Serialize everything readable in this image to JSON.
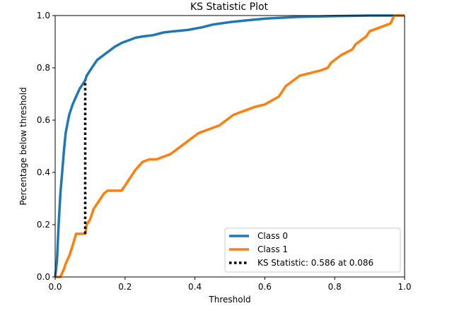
{
  "chart_data": {
    "type": "line",
    "title": "KS Statistic Plot",
    "xlabel": "Threshold",
    "ylabel": "Percentage below threshold",
    "xlim": [
      0.0,
      1.0
    ],
    "ylim": [
      0.0,
      1.0
    ],
    "xticks": [
      "0.0",
      "0.2",
      "0.4",
      "0.6",
      "0.8",
      "1.0"
    ],
    "yticks": [
      "0.0",
      "0.2",
      "0.4",
      "0.6",
      "0.8",
      "1.0"
    ],
    "grid": false,
    "legend_position": "lower-right",
    "series": [
      {
        "name": "Class 0",
        "color": "#1f77b4",
        "style": "solid",
        "x": [
          0.0,
          0.005,
          0.01,
          0.015,
          0.02,
          0.025,
          0.03,
          0.04,
          0.05,
          0.06,
          0.07,
          0.08,
          0.086,
          0.09,
          0.1,
          0.11,
          0.12,
          0.13,
          0.14,
          0.15,
          0.17,
          0.19,
          0.21,
          0.23,
          0.25,
          0.28,
          0.31,
          0.34,
          0.38,
          0.42,
          0.45,
          0.5,
          0.55,
          0.6,
          0.65,
          0.7,
          0.8,
          0.9,
          1.0
        ],
        "y": [
          0.0,
          0.06,
          0.2,
          0.32,
          0.4,
          0.48,
          0.55,
          0.62,
          0.66,
          0.69,
          0.72,
          0.74,
          0.752,
          0.77,
          0.79,
          0.81,
          0.83,
          0.84,
          0.85,
          0.86,
          0.88,
          0.895,
          0.905,
          0.915,
          0.92,
          0.925,
          0.935,
          0.94,
          0.945,
          0.955,
          0.965,
          0.975,
          0.982,
          0.988,
          0.992,
          0.995,
          0.998,
          1.0,
          1.0
        ]
      },
      {
        "name": "Class 1",
        "color": "#ff7f0e",
        "style": "solid",
        "x": [
          0.0,
          0.015,
          0.025,
          0.03,
          0.04,
          0.05,
          0.06,
          0.07,
          0.086,
          0.09,
          0.1,
          0.11,
          0.12,
          0.13,
          0.14,
          0.15,
          0.17,
          0.19,
          0.2,
          0.21,
          0.23,
          0.25,
          0.27,
          0.29,
          0.31,
          0.33,
          0.35,
          0.37,
          0.39,
          0.41,
          0.43,
          0.45,
          0.47,
          0.49,
          0.51,
          0.53,
          0.55,
          0.57,
          0.6,
          0.64,
          0.66,
          0.68,
          0.69,
          0.7,
          0.73,
          0.76,
          0.78,
          0.79,
          0.8,
          0.82,
          0.85,
          0.86,
          0.88,
          0.89,
          0.9,
          0.94,
          0.96,
          0.97,
          1.0
        ],
        "y": [
          0.0,
          0.0,
          0.03,
          0.05,
          0.08,
          0.12,
          0.165,
          0.165,
          0.165,
          0.2,
          0.22,
          0.26,
          0.28,
          0.3,
          0.32,
          0.33,
          0.33,
          0.33,
          0.35,
          0.37,
          0.41,
          0.44,
          0.45,
          0.45,
          0.46,
          0.47,
          0.49,
          0.51,
          0.53,
          0.55,
          0.56,
          0.57,
          0.58,
          0.6,
          0.62,
          0.63,
          0.64,
          0.65,
          0.66,
          0.69,
          0.73,
          0.75,
          0.76,
          0.77,
          0.78,
          0.79,
          0.8,
          0.82,
          0.83,
          0.85,
          0.87,
          0.89,
          0.91,
          0.92,
          0.94,
          0.96,
          0.97,
          1.0,
          1.0
        ]
      }
    ],
    "ks_line": {
      "label": "KS Statistic: 0.586 at 0.086",
      "color": "#000000",
      "style": "dotted",
      "x": 0.086,
      "y_from": 0.165,
      "y_to": 0.752
    }
  }
}
